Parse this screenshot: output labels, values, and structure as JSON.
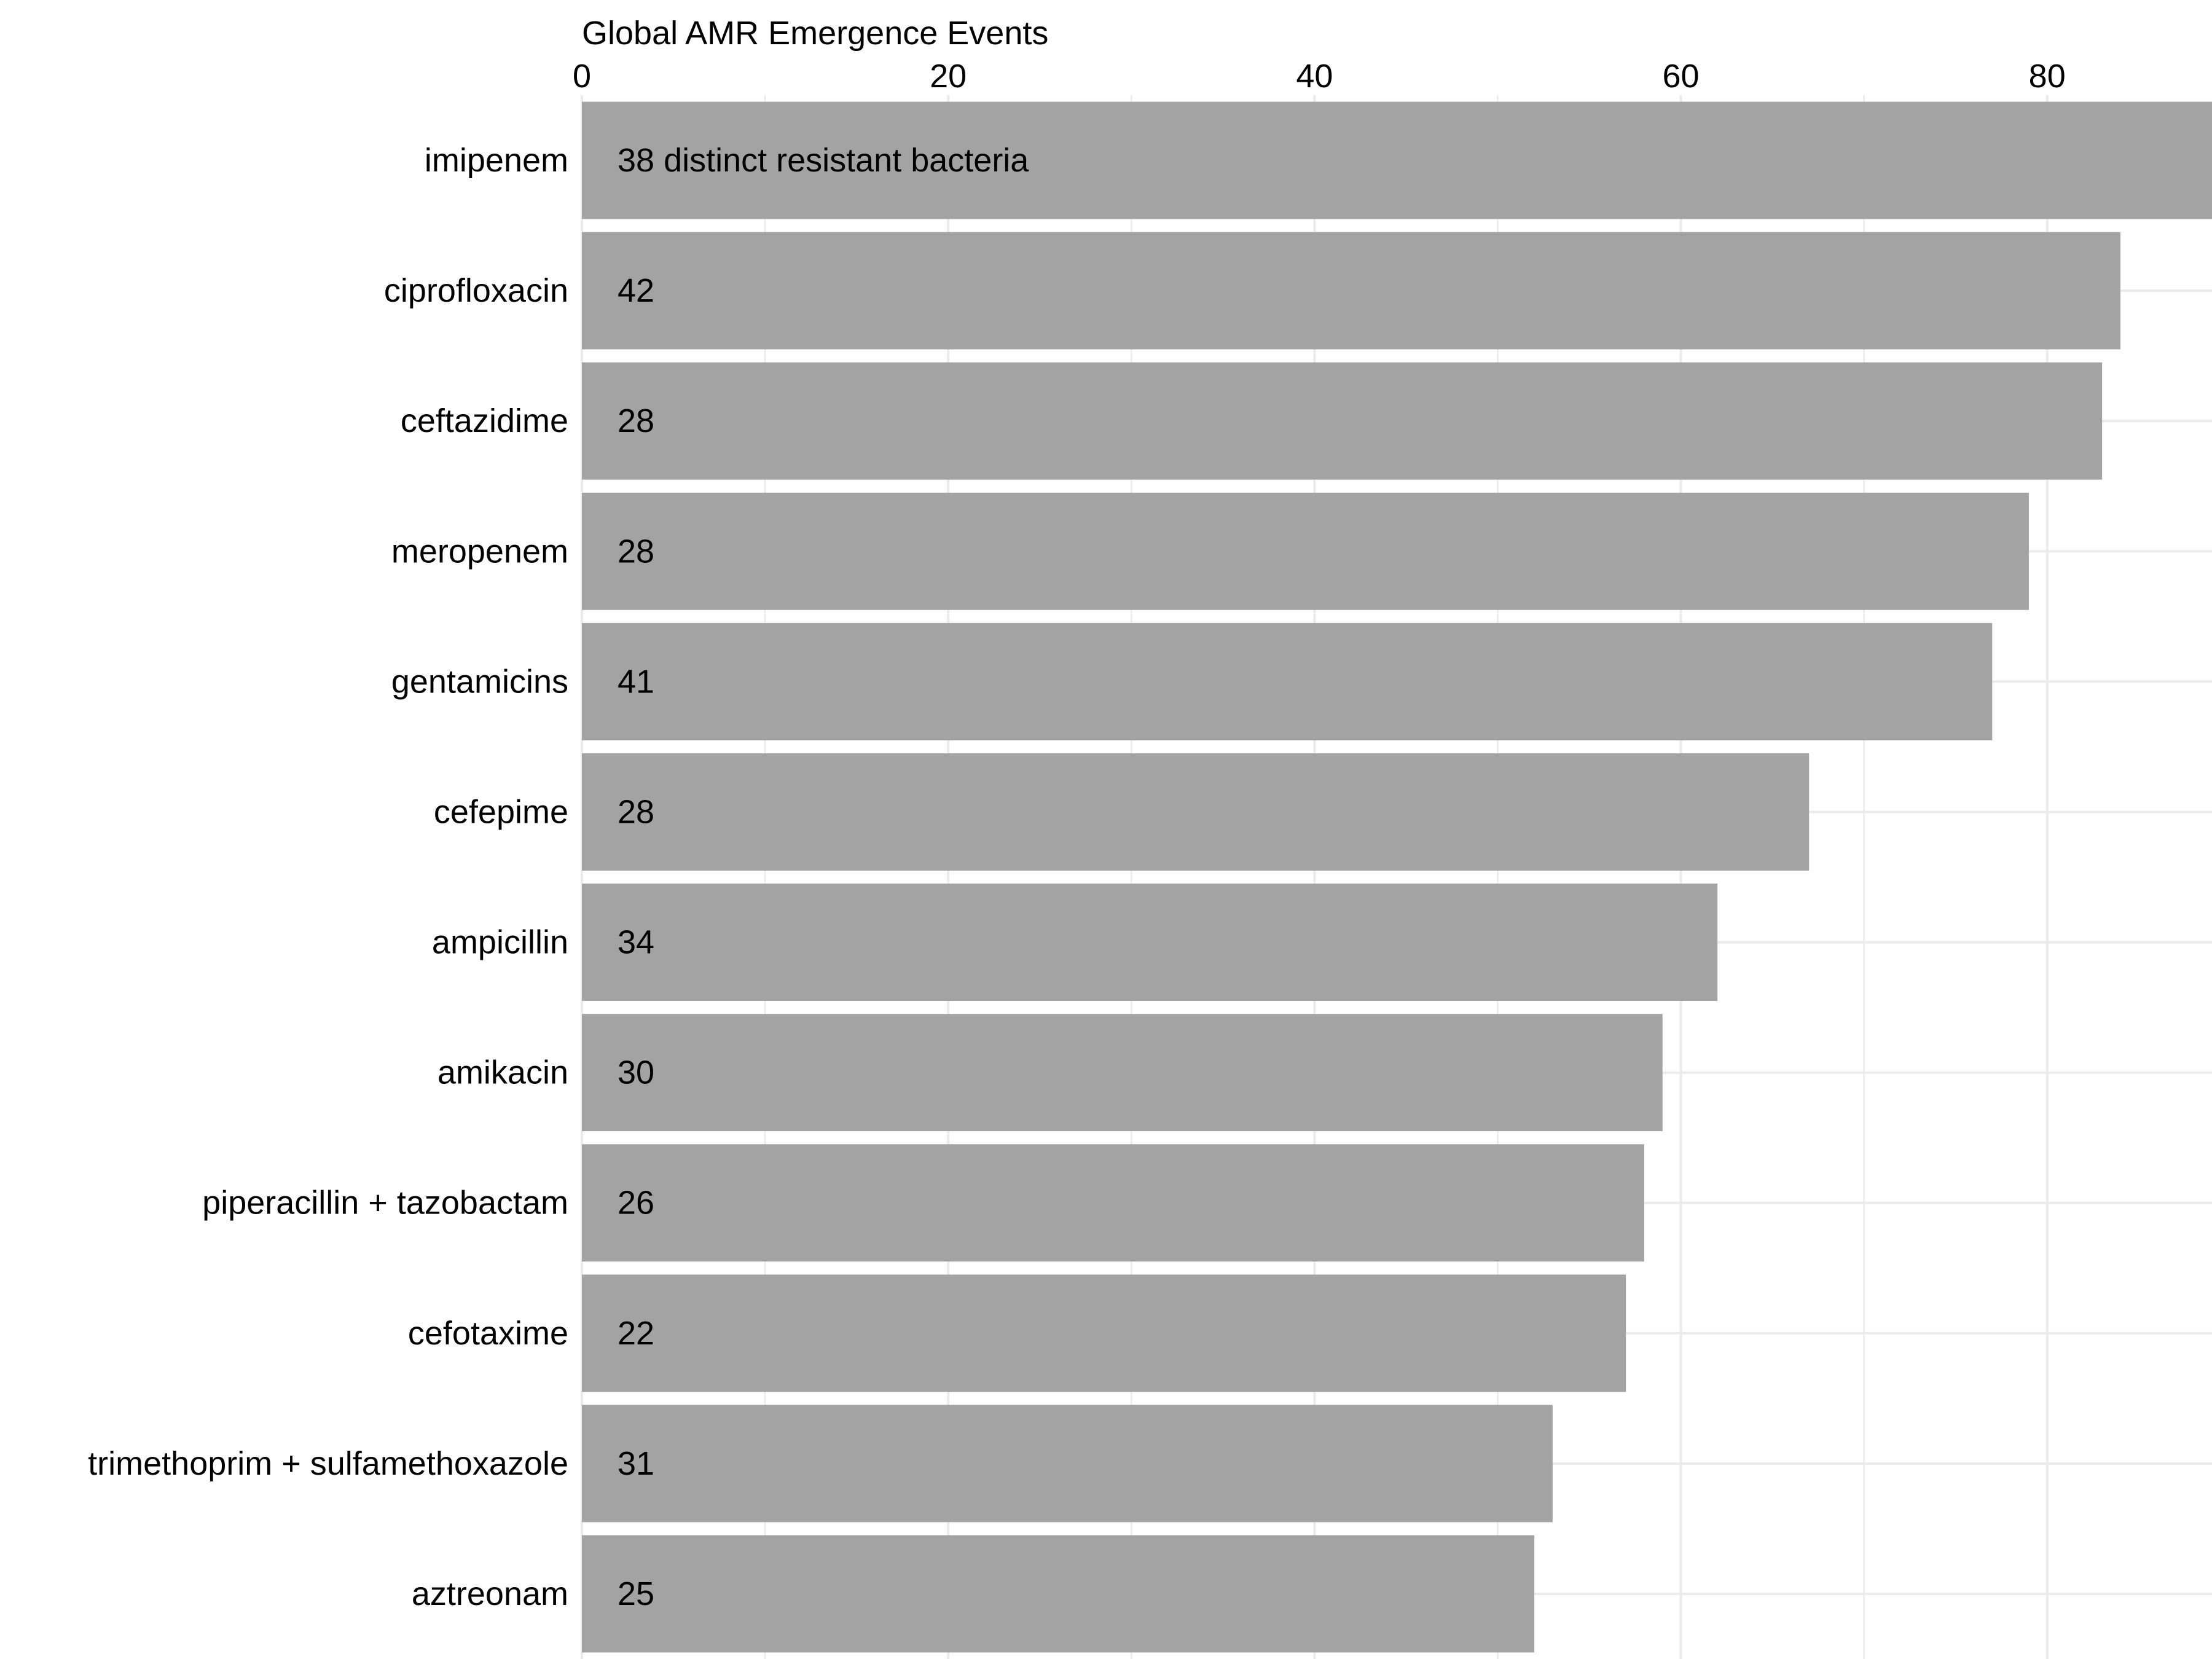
{
  "chart_data": {
    "type": "bar",
    "orientation": "horizontal",
    "xlabel": "Global AMR Emergence Events",
    "ylabel": "",
    "xlim": [
      0,
      89
    ],
    "x_ticks": [
      0,
      20,
      40,
      60,
      80
    ],
    "x_axis_position": "top",
    "grid": true,
    "bar_color": "#a3a3a3",
    "categories": [
      "imipenem",
      "ciprofloxacin",
      "ceftazidime",
      "meropenem",
      "gentamicins",
      "cefepime",
      "ampicillin",
      "amikacin",
      "piperacillin + tazobactam",
      "cefotaxime",
      "trimethoprim + sulfamethoxazole",
      "aztreonam"
    ],
    "values": [
      89,
      84,
      83,
      79,
      77,
      67,
      62,
      59,
      58,
      57,
      53,
      52
    ],
    "bar_labels": [
      "38 distinct resistant bacteria",
      "42",
      "28",
      "28",
      "41",
      "28",
      "34",
      "30",
      "26",
      "22",
      "31",
      "25"
    ]
  }
}
